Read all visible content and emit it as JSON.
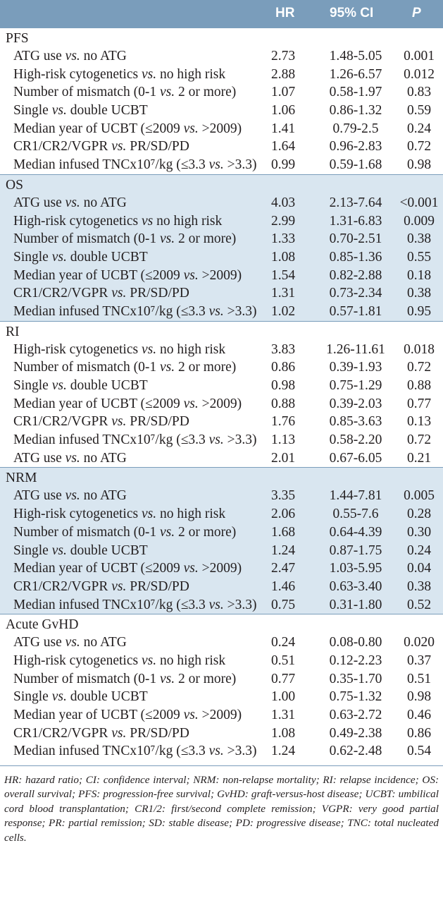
{
  "header": {
    "hr": "HR",
    "ci": "95% CI",
    "p": "P"
  },
  "sections": [
    {
      "title": "PFS",
      "shaded": false,
      "rows": [
        [
          "ATG use vs. no ATG",
          "2.73",
          "1.48-5.05",
          "0.001"
        ],
        [
          "High-risk cytogenetics vs. no high risk",
          "2.88",
          "1.26-6.57",
          "0.012"
        ],
        [
          "Number of mismatch (0-1 vs. 2 or more)",
          "1.07",
          "0.58-1.97",
          "0.83"
        ],
        [
          "Single vs. double UCBT",
          "1.06",
          "0.86-1.32",
          "0.59"
        ],
        [
          "Median year of UCBT (≤2009 vs. >2009)",
          "1.41",
          "0.79-2.5",
          "0.24"
        ],
        [
          "CR1/CR2/VGPR vs. PR/SD/PD",
          "1.64",
          "0.96-2.83",
          "0.72"
        ],
        [
          "Median infused TNCx10⁷/kg (≤3.3 vs. >3.3)",
          "0.99",
          "0.59-1.68",
          "0.98"
        ]
      ]
    },
    {
      "title": "OS",
      "shaded": true,
      "rows": [
        [
          "ATG use vs. no ATG",
          "4.03",
          "2.13-7.64",
          "<0.001"
        ],
        [
          "High-risk cytogenetics vs no high risk",
          "2.99",
          "1.31-6.83",
          "0.009"
        ],
        [
          "Number of mismatch (0-1 vs. 2 or more)",
          "1.33",
          "0.70-2.51",
          "0.38"
        ],
        [
          "Single vs. double UCBT",
          "1.08",
          "0.85-1.36",
          "0.55"
        ],
        [
          "Median year of UCBT (≤2009 vs. >2009)",
          "1.54",
          "0.82-2.88",
          "0.18"
        ],
        [
          "CR1/CR2/VGPR vs. PR/SD/PD",
          "1.31",
          "0.73-2.34",
          "0.38"
        ],
        [
          "Median infused TNCx10⁷/kg (≤3.3 vs. >3.3)",
          "1.02",
          "0.57-1.81",
          "0.95"
        ]
      ]
    },
    {
      "title": "RI",
      "shaded": false,
      "rows": [
        [
          "High-risk cytogenetics vs. no high risk",
          "3.83",
          "1.26-11.61",
          "0.018"
        ],
        [
          "Number of mismatch (0-1 vs. 2 or more)",
          "0.86",
          "0.39-1.93",
          "0.72"
        ],
        [
          "Single vs. double UCBT",
          "0.98",
          "0.75-1.29",
          "0.88"
        ],
        [
          "Median year of UCBT (≤2009 vs. >2009)",
          "0.88",
          "0.39-2.03",
          "0.77"
        ],
        [
          "CR1/CR2/VGPR vs. PR/SD/PD",
          "1.76",
          "0.85-3.63",
          "0.13"
        ],
        [
          "Median infused TNCx10⁷/kg (≤3.3 vs. >3.3)",
          "1.13",
          "0.58-2.20",
          "0.72"
        ],
        [
          "ATG use vs. no ATG",
          "2.01",
          "0.67-6.05",
          "0.21"
        ]
      ]
    },
    {
      "title": "NRM",
      "shaded": true,
      "rows": [
        [
          "ATG use vs. no ATG",
          "3.35",
          "1.44-7.81",
          "0.005"
        ],
        [
          "High-risk cytogenetics vs. no high risk",
          "2.06",
          "0.55-7.6",
          "0.28"
        ],
        [
          "Number of mismatch (0-1 vs. 2 or more)",
          "1.68",
          "0.64-4.39",
          "0.30"
        ],
        [
          "Single vs. double UCBT",
          "1.24",
          "0.87-1.75",
          "0.24"
        ],
        [
          "Median year of UCBT (≤2009 vs. >2009)",
          "2.47",
          "1.03-5.95",
          "0.04"
        ],
        [
          "CR1/CR2/VGPR vs. PR/SD/PD",
          "1.46",
          "0.63-3.40",
          "0.38"
        ],
        [
          "Median infused TNCx10⁷/kg (≤3.3 vs. >3.3)",
          "0.75",
          "0.31-1.80",
          "0.52"
        ]
      ]
    },
    {
      "title": "Acute GvHD",
      "shaded": false,
      "rows": [
        [
          "ATG use vs. no ATG",
          "0.24",
          "0.08-0.80",
          "0.020"
        ],
        [
          "High-risk cytogenetics vs. no high risk",
          "0.51",
          "0.12-2.23",
          "0.37"
        ],
        [
          "Number of mismatch (0-1 vs. 2 or more)",
          "0.77",
          "0.35-1.70",
          "0.51"
        ],
        [
          "Single vs. double UCBT",
          "1.00",
          "0.75-1.32",
          "0.98"
        ],
        [
          "Median year of UCBT (≤2009 vs. >2009)",
          "1.31",
          "0.63-2.72",
          "0.46"
        ],
        [
          "CR1/CR2/VGPR vs. PR/SD/PD",
          "1.08",
          "0.49-2.38",
          "0.86"
        ],
        [
          "Median infused TNCx10⁷/kg (≤3.3 vs. >3.3)",
          "1.24",
          "0.62-2.48",
          "0.54"
        ]
      ]
    }
  ],
  "footnote": "HR: hazard ratio; CI: confidence interval; NRM: non-relapse mortality; RI: relapse incidence; OS: overall survival; PFS: progression-free survival; GvHD: graft-versus-host disease; UCBT: umbilical cord blood transplantation; CR1/2: first/second complete remission; VGPR: very good partial response; PR: partial remission; SD: stable disease; PD: progressive disease; TNC: total nucleated cells.",
  "colors": {
    "header_bg": "#7a9dbb",
    "shade": "#d9e6f0",
    "text": "#231f20"
  }
}
